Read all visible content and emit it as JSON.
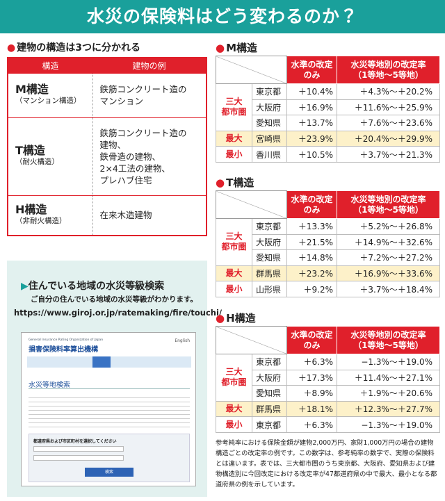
{
  "header": {
    "title": "水災の保険料はどう変わるのか？"
  },
  "structures": {
    "heading": "建物の構造は3つに分かれる",
    "columns": [
      "構造",
      "建物の例"
    ],
    "rows": [
      {
        "name": "M構造",
        "note": "（マンション構造）",
        "examples": [
          "鉄筋コンクリート造の",
          "マンション"
        ]
      },
      {
        "name": "T構造",
        "note": "（耐火構造）",
        "examples": [
          "鉄筋コンクリート造の",
          "建物、",
          "鉄骨造の建物、",
          "2×4工法の建物、",
          "プレハブ住宅"
        ]
      },
      {
        "name": "H構造",
        "note": "（非耐火構造）",
        "examples": [
          "在来木造建物"
        ]
      }
    ]
  },
  "search": {
    "heading": "住んでいる地域の水災等級検索",
    "subheading": "ご自分の住んでいる地域の水災等級がわかります。",
    "url": "https://www.giroj.or.jp/ratemaking/fire/touchi/",
    "screenshot": {
      "org_en": "General Insurance Rating Organization of Japan",
      "org": "損害保険料率算出機構",
      "lang": "English",
      "page_title": "水災等地検索",
      "form_label": "都道府県および市区町村を選択してください",
      "button": "検索"
    }
  },
  "rate_tables": [
    {
      "heading": "M構造",
      "columns": [
        "水準の改定のみ",
        "水災等地別の改定率",
        "（1等地～5等地）"
      ],
      "groups": [
        {
          "label": [
            "三大",
            "都市圏"
          ],
          "rows": [
            [
              "東京都",
              "＋10.4%",
              "＋4.3%～＋20.2%"
            ],
            [
              "大阪府",
              "＋16.9%",
              "＋11.6%～＋25.9%"
            ],
            [
              "愛知県",
              "＋13.7%",
              "＋7.6%～＋23.6%"
            ]
          ]
        },
        {
          "label": [
            "最大"
          ],
          "fill": "#fdf1c9",
          "rows": [
            [
              "宮崎県",
              "＋23.9%",
              "＋20.4%～＋29.9%"
            ]
          ]
        },
        {
          "label": [
            "最小"
          ],
          "rows": [
            [
              "香川県",
              "＋10.5%",
              "＋3.7%～＋21.3%"
            ]
          ]
        }
      ]
    },
    {
      "heading": "T構造",
      "columns": [
        "水準の改定のみ",
        "水災等地別の改定率",
        "（1等地～5等地）"
      ],
      "groups": [
        {
          "label": [
            "三大",
            "都市圏"
          ],
          "rows": [
            [
              "東京都",
              "＋13.3%",
              "＋5.2%～＋26.8%"
            ],
            [
              "大阪府",
              "＋21.5%",
              "＋14.9%～＋32.6%"
            ],
            [
              "愛知県",
              "＋14.8%",
              "＋7.2%～＋27.2%"
            ]
          ]
        },
        {
          "label": [
            "最大"
          ],
          "fill": "#fdf1c9",
          "rows": [
            [
              "群馬県",
              "＋23.2%",
              "＋16.9%～＋33.6%"
            ]
          ]
        },
        {
          "label": [
            "最小"
          ],
          "rows": [
            [
              "山形県",
              "＋9.2%",
              "＋3.7%～＋18.4%"
            ]
          ]
        }
      ]
    },
    {
      "heading": "H構造",
      "columns": [
        "水準の改定のみ",
        "水災等地別の改定率",
        "（1等地～5等地）"
      ],
      "groups": [
        {
          "label": [
            "三大",
            "都市圏"
          ],
          "rows": [
            [
              "東京都",
              "＋6.3%",
              "−1.3%～＋19.0%"
            ],
            [
              "大阪府",
              "＋17.3%",
              "＋11.4%～＋27.1%"
            ],
            [
              "愛知県",
              "＋8.9%",
              "＋1.9%～＋20.6%"
            ]
          ]
        },
        {
          "label": [
            "最大"
          ],
          "fill": "#fdf1c9",
          "rows": [
            [
              "群馬県",
              "＋18.1%",
              "＋12.3%～＋27.7%"
            ]
          ]
        },
        {
          "label": [
            "最小"
          ],
          "rows": [
            [
              "東京都",
              "＋6.3%",
              "−1.3%～＋19.0%"
            ]
          ]
        }
      ]
    }
  ],
  "footnote": "参考純率における保険金額が建物2,000万円、家財1,000万円の場合の建物構造ごとの改定率の例です。この数字は、参考純率の数字で、実際の保険料とは違います。表では、三大都市圏のうち東京都、大阪府、愛知県および建物構造別に今回改定における改定率が47都道府県の中で最大、最小となる都道府県の例を示しています。"
}
